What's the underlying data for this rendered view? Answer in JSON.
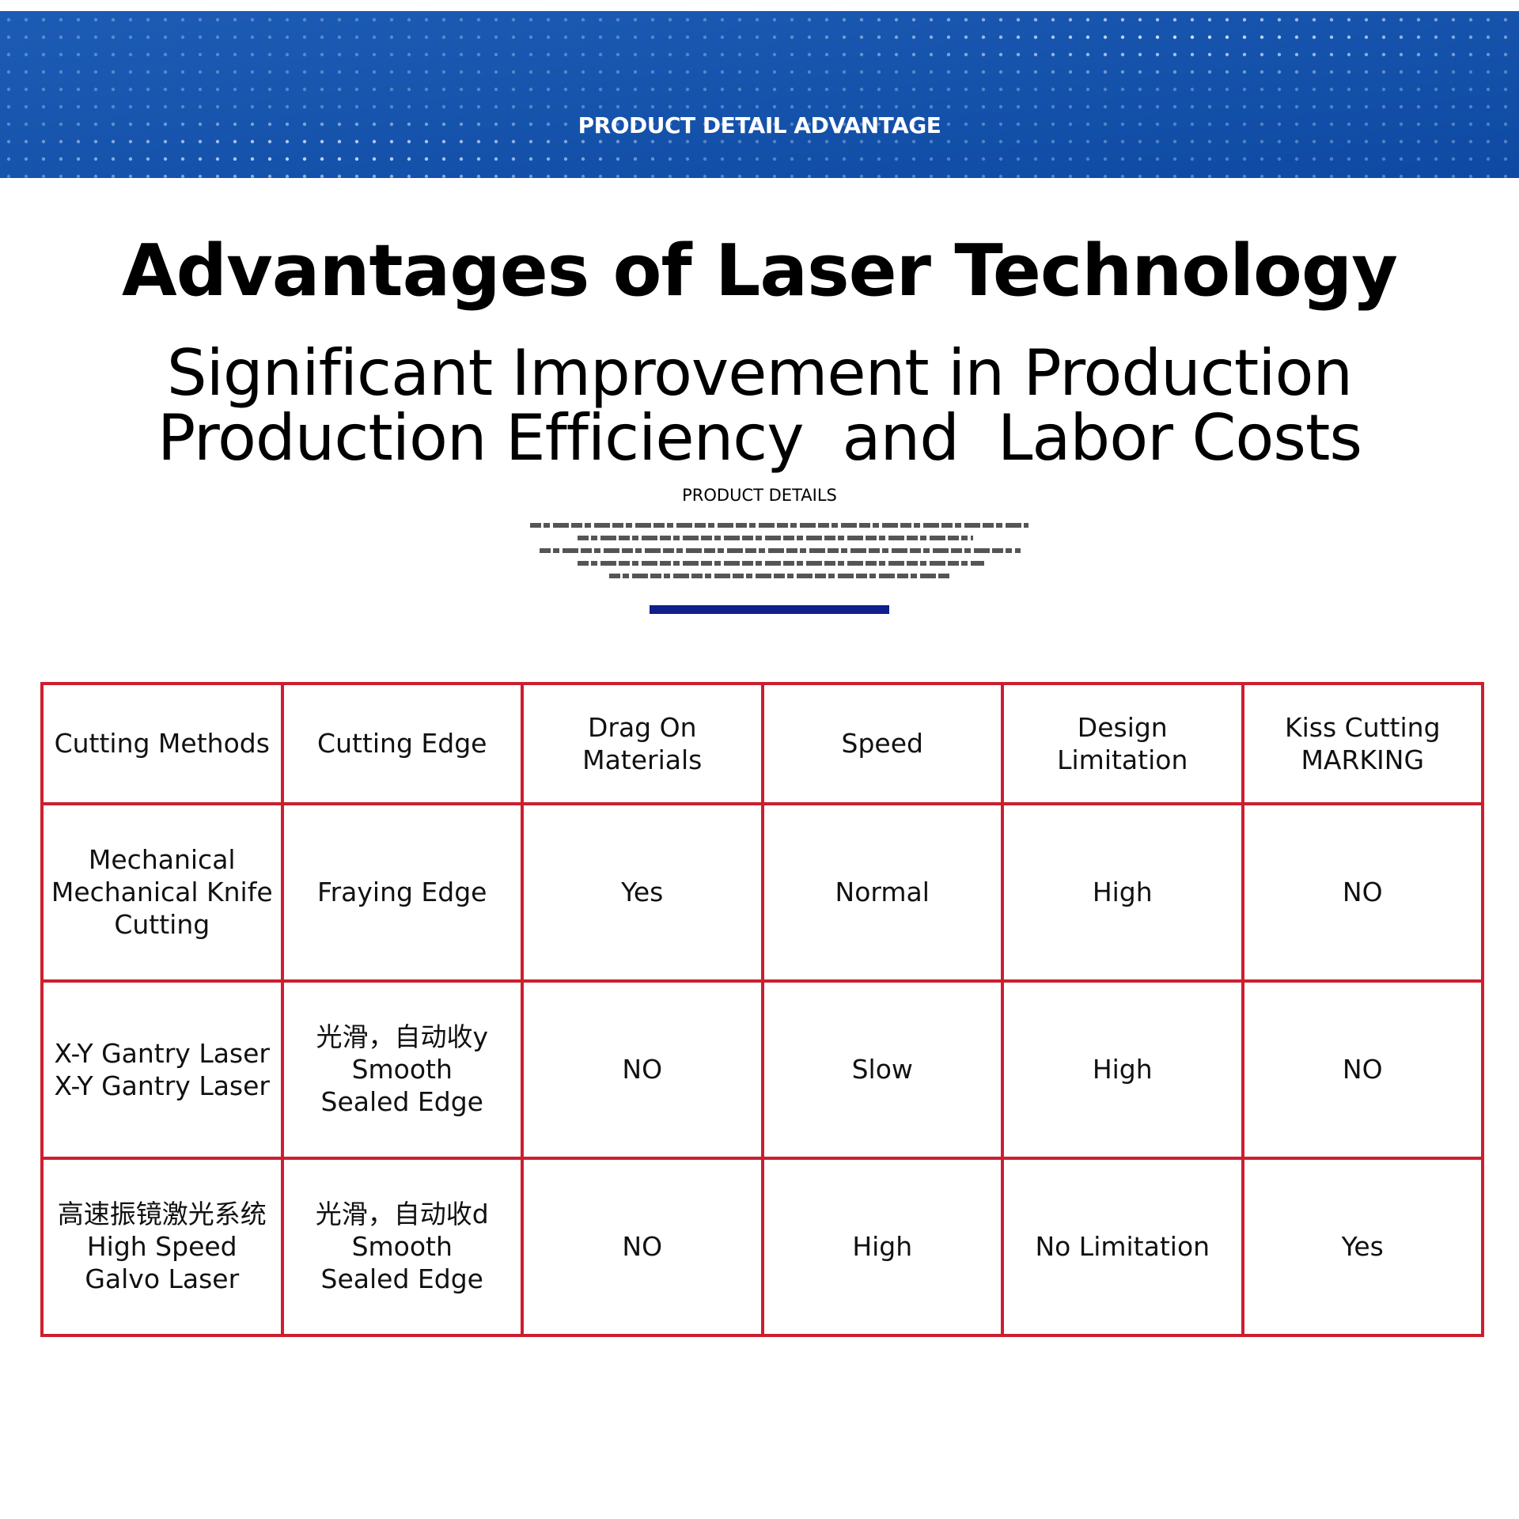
{
  "banner": {
    "label": "PRODUCT DETAIL ADVANTAGE"
  },
  "header": {
    "title": "Advantages of Laser Technology",
    "subtitle": [
      "Significant Improvement in Production",
      "Production Efficiency  and  Labor Costs"
    ],
    "section_label": "PRODUCT DETAILS"
  },
  "table": {
    "header": [
      "Cutting Methods",
      "Cutting Edge",
      "Drag On Materials",
      "Speed",
      "Design Limitation",
      "Kiss Cutting\nMARKING"
    ],
    "rows": [
      [
        "Mechanical\nMechanical Knife\nCutting",
        "Fraying Edge",
        "Yes",
        "Normal",
        "High",
        "NO"
      ],
      [
        "X-Y Gantry Laser\nX-Y Gantry Laser",
        "光滑，自动收y\nSmooth\nSealed Edge",
        "NO",
        "Slow",
        "High",
        "NO"
      ],
      [
        "高速振镜激光系统\nHigh Speed\nGalvo Laser",
        "光滑，自动收d\nSmooth\nSealed Edge",
        "NO",
        "High",
        "No Limitation",
        "Yes"
      ]
    ]
  }
}
